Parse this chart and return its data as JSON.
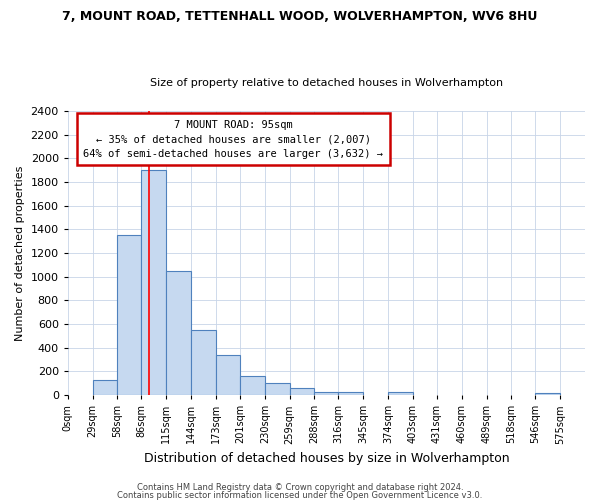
{
  "title": "7, MOUNT ROAD, TETTENHALL WOOD, WOLVERHAMPTON, WV6 8HU",
  "subtitle": "Size of property relative to detached houses in Wolverhampton",
  "xlabel": "Distribution of detached houses by size in Wolverhampton",
  "ylabel": "Number of detached properties",
  "bin_edges": [
    0,
    29,
    58,
    86,
    115,
    144,
    173,
    201,
    230,
    259,
    288,
    316,
    345,
    374,
    403,
    431,
    460,
    489,
    518,
    546,
    575
  ],
  "bin_labels": [
    "0sqm",
    "29sqm",
    "58sqm",
    "86sqm",
    "115sqm",
    "144sqm",
    "173sqm",
    "201sqm",
    "230sqm",
    "259sqm",
    "288sqm",
    "316sqm",
    "345sqm",
    "374sqm",
    "403sqm",
    "431sqm",
    "460sqm",
    "489sqm",
    "518sqm",
    "546sqm",
    "575sqm"
  ],
  "bar_heights": [
    0,
    125,
    1350,
    1900,
    1050,
    550,
    335,
    160,
    105,
    60,
    30,
    30,
    0,
    25,
    0,
    0,
    0,
    0,
    0,
    15,
    0
  ],
  "bar_color": "#c6d9f0",
  "bar_edge_color": "#4f81bd",
  "red_line_x": 95,
  "ylim": [
    0,
    2400
  ],
  "yticks": [
    0,
    200,
    400,
    600,
    800,
    1000,
    1200,
    1400,
    1600,
    1800,
    2000,
    2200,
    2400
  ],
  "annotation_title": "7 MOUNT ROAD: 95sqm",
  "annotation_line1": "← 35% of detached houses are smaller (2,007)",
  "annotation_line2": "64% of semi-detached houses are larger (3,632) →",
  "annotation_box_color": "#ffffff",
  "annotation_box_edge": "#cc0000",
  "footer1": "Contains HM Land Registry data © Crown copyright and database right 2024.",
  "footer2": "Contains public sector information licensed under the Open Government Licence v3.0.",
  "background_color": "#ffffff",
  "grid_color": "#c8d4e8",
  "title_fontsize": 9,
  "subtitle_fontsize": 8,
  "xlabel_fontsize": 9,
  "ylabel_fontsize": 8,
  "xtick_fontsize": 7,
  "ytick_fontsize": 8,
  "footer_fontsize": 6
}
